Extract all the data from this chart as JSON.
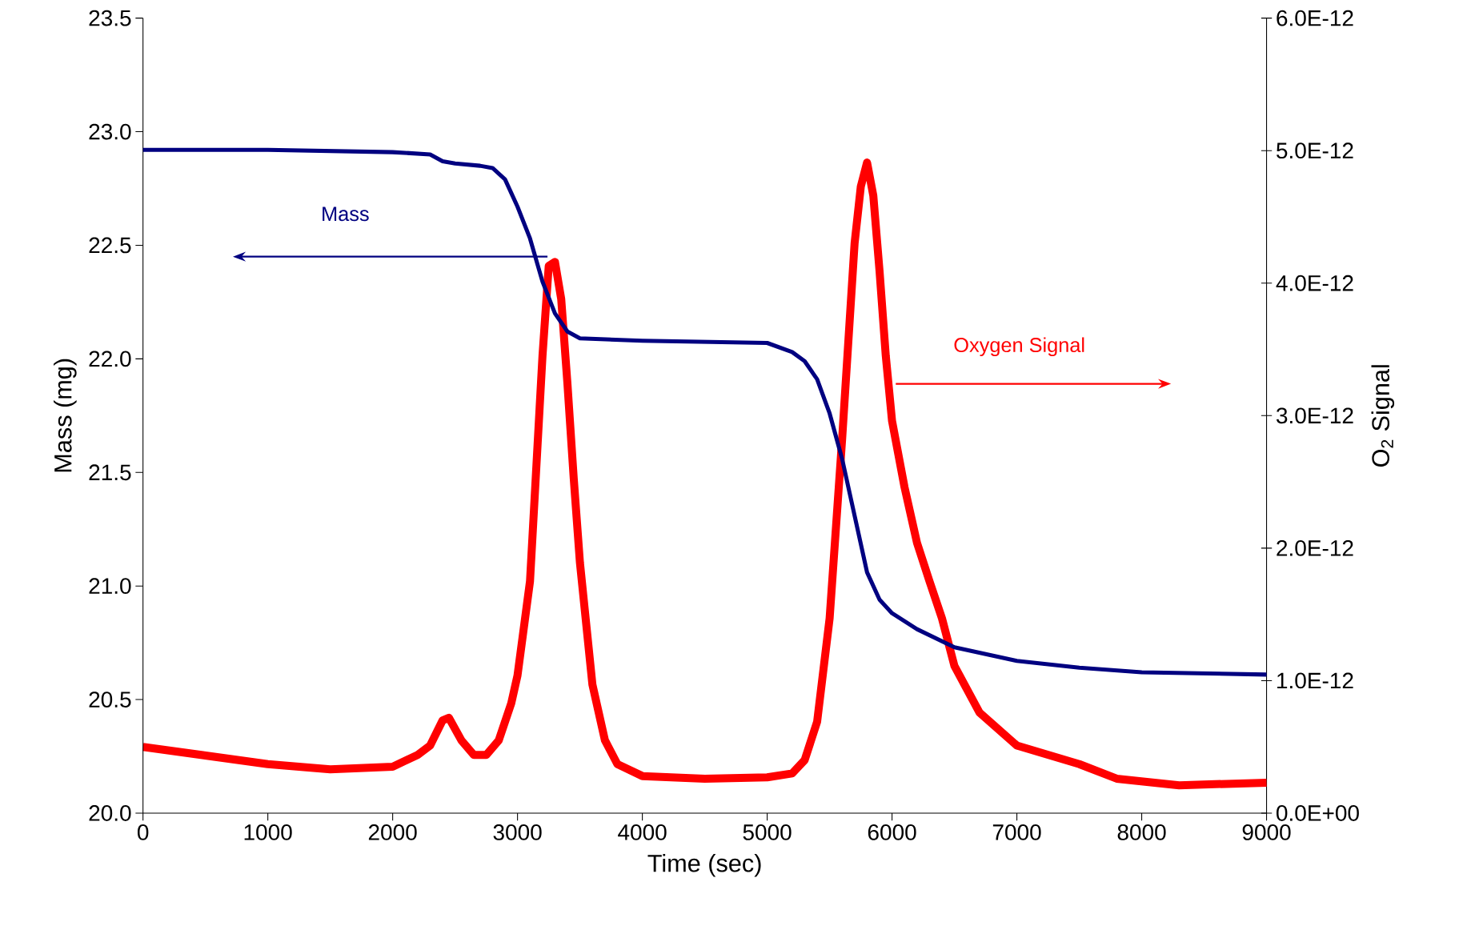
{
  "chart_data": {
    "type": "line",
    "xlabel": "Time (sec)",
    "ylabel": "Mass (mg)",
    "y2label": "O$_{2}$ Signal",
    "xlim": [
      0,
      9000
    ],
    "xticks": [
      0,
      1000,
      2000,
      3000,
      4000,
      5000,
      6000,
      7000,
      8000,
      9000
    ],
    "ylim": [
      20,
      23.5
    ],
    "yticks": [
      {
        "value": 20,
        "label": "20.0"
      },
      {
        "value": 20.5,
        "label": "20.5"
      },
      {
        "value": 21,
        "label": "21.0"
      },
      {
        "value": 21.5,
        "label": "21.5"
      },
      {
        "value": 22,
        "label": "22.0"
      },
      {
        "value": 22.5,
        "label": "22.5"
      },
      {
        "value": 23,
        "label": "23.0"
      },
      {
        "value": 23.5,
        "label": "23.5"
      }
    ],
    "y2lim": [
      0,
      6e-12
    ],
    "y2ticks": [
      {
        "value": 0,
        "label": "0.0E+00"
      },
      {
        "value": 1e-12,
        "label": "1.0E-12"
      },
      {
        "value": 2e-12,
        "label": "2.0E-12"
      },
      {
        "value": 3e-12,
        "label": "3.0E-12"
      },
      {
        "value": 4e-12,
        "label": "4.0E-12"
      },
      {
        "value": 5e-12,
        "label": "5.0E-12"
      },
      {
        "value": 6e-12,
        "label": "6.0E-12"
      }
    ],
    "series": [
      {
        "name": "Mass",
        "color": "#000080",
        "x": [
          0,
          1000,
          2000,
          2300,
          2400,
          2500,
          2700,
          2800,
          2900,
          3000,
          3100,
          3200,
          3300,
          3400,
          3500,
          4000,
          5000,
          5200,
          5300,
          5400,
          5500,
          5600,
          5700,
          5800,
          5900,
          6000,
          6200,
          6500,
          7000,
          7500,
          8000,
          9000
        ],
        "values": [
          22.92,
          22.92,
          22.91,
          22.9,
          22.87,
          22.86,
          22.85,
          22.84,
          22.79,
          22.67,
          22.53,
          22.34,
          22.2,
          22.12,
          22.09,
          22.08,
          22.07,
          22.03,
          21.99,
          21.91,
          21.76,
          21.56,
          21.31,
          21.06,
          20.94,
          20.88,
          20.81,
          20.73,
          20.67,
          20.64,
          20.62,
          20.61
        ]
      },
      {
        "name": "Oxygen Signal",
        "color": "#ff0000",
        "axis": "y2",
        "x": [
          0,
          1000,
          1500,
          2000,
          2200,
          2300,
          2400,
          2450,
          2550,
          2650,
          2750,
          2850,
          2950,
          3000,
          3100,
          3150,
          3200,
          3250,
          3300,
          3350,
          3400,
          3450,
          3500,
          3600,
          3700,
          3800,
          4000,
          4500,
          5000,
          5200,
          5300,
          5400,
          5500,
          5600,
          5700,
          5750,
          5800,
          5850,
          5900,
          5950,
          6000,
          6100,
          6200,
          6300,
          6400,
          6500,
          6700,
          7000,
          7500,
          7800,
          8300,
          9000
        ],
        "values": [
          5e-13,
          3.7e-13,
          3.3e-13,
          3.5e-13,
          4.4e-13,
          5.1e-13,
          7e-13,
          7.2e-13,
          5.5e-13,
          4.4e-13,
          4.4e-13,
          5.5e-13,
          8.3e-13,
          1.04e-12,
          1.75e-12,
          2.6e-12,
          3.45e-12,
          4.13e-12,
          4.16e-12,
          3.88e-12,
          3.24e-12,
          2.53e-12,
          1.89e-12,
          9.7e-13,
          5.5e-13,
          3.7e-13,
          2.8e-13,
          2.6e-13,
          2.7e-13,
          3e-13,
          4e-13,
          6.9e-13,
          1.47e-12,
          2.82e-12,
          4.3e-12,
          4.73e-12,
          4.91e-12,
          4.66e-12,
          4.09e-12,
          3.45e-12,
          2.96e-12,
          2.46e-12,
          2.04e-12,
          1.75e-12,
          1.47e-12,
          1.11e-12,
          7.6e-13,
          5.1e-13,
          3.7e-13,
          2.6e-13,
          2.1e-13,
          2.3e-13
        ]
      }
    ]
  }
}
